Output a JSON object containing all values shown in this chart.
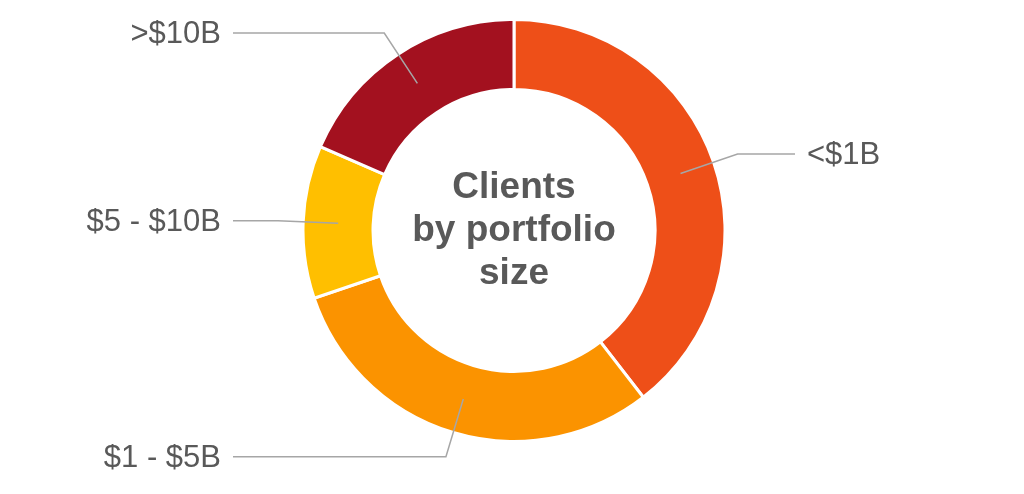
{
  "chart_data": {
    "type": "donut",
    "title": "Clients\nby portfolio\nsize",
    "categories": [
      "<$1B",
      "$1 - $5B",
      "$5 - $10B",
      ">$10B"
    ],
    "values": [
      39.5,
      30.3,
      11.7,
      18.5
    ],
    "colors": [
      "#ee4f18",
      "#fb9300",
      "#ffbf00",
      "#a3111f"
    ]
  }
}
